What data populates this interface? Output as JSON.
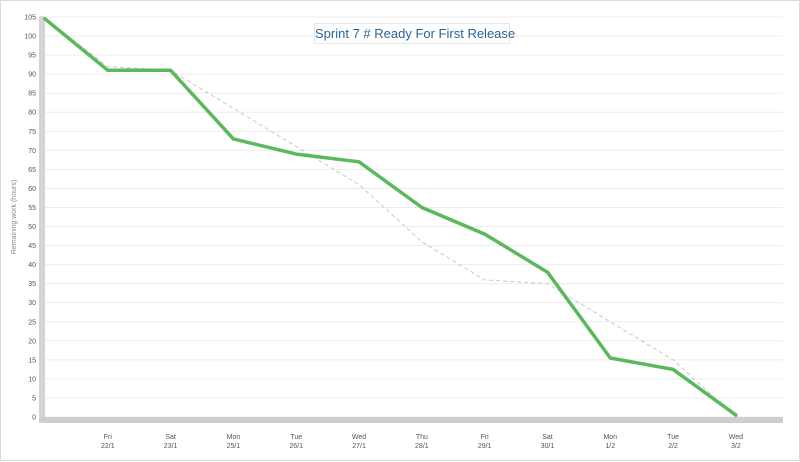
{
  "chart_data": {
    "type": "line",
    "title": "Sprint 7 # Ready For First Release",
    "ylabel": "Remaining work (hours)",
    "xlabel": "",
    "ylim": [
      0,
      105
    ],
    "yticks": [
      0,
      5,
      10,
      15,
      20,
      25,
      30,
      35,
      40,
      45,
      50,
      55,
      60,
      65,
      70,
      75,
      80,
      85,
      90,
      95,
      100,
      105
    ],
    "grid": true,
    "categories": [
      {
        "day": "",
        "date": ""
      },
      {
        "day": "Fri",
        "date": "22/1"
      },
      {
        "day": "Sat",
        "date": "23/1"
      },
      {
        "day": "Mon",
        "date": "25/1"
      },
      {
        "day": "Tue",
        "date": "26/1"
      },
      {
        "day": "Wed",
        "date": "27/1"
      },
      {
        "day": "Thu",
        "date": "28/1"
      },
      {
        "day": "Fri",
        "date": "29/1"
      },
      {
        "day": "Sat",
        "date": "30/1"
      },
      {
        "day": "Mon",
        "date": "1/2"
      },
      {
        "day": "Tue",
        "date": "2/2"
      },
      {
        "day": "Wed",
        "date": "3/2"
      }
    ],
    "series": [
      {
        "style": "remaining",
        "color": "#5cb85c",
        "values": [
          104.5,
          91,
          91,
          73,
          69,
          67,
          55,
          48,
          38,
          15.5,
          12.5,
          0.5
        ]
      },
      {
        "style": "ideal",
        "color": "#c8c8c8",
        "values": [
          104.5,
          92,
          91,
          81,
          71,
          61,
          46,
          36,
          35,
          25,
          15,
          0
        ]
      }
    ]
  }
}
